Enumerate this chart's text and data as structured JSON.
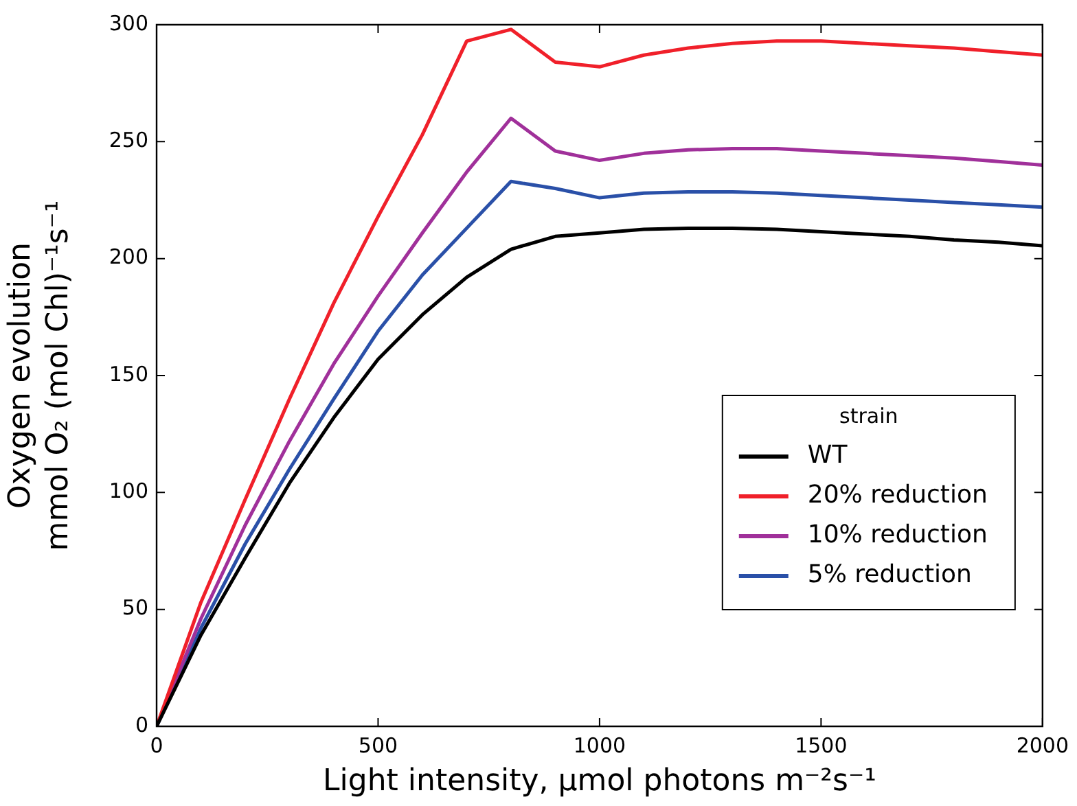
{
  "chart_data": {
    "type": "line",
    "xlabel": "Light intensity, μmol photons m⁻²s⁻¹",
    "ylabel": "Oxygen evolution\nmmol O₂ (mol Chl)⁻¹s⁻¹",
    "legend_title": "strain",
    "legend": "bottom right",
    "grid": false,
    "marker": "none",
    "line_style": "solid",
    "x": [
      0,
      100,
      200,
      300,
      400,
      500,
      600,
      700,
      800,
      900,
      1000,
      1100,
      1200,
      1300,
      1400,
      1500,
      1600,
      1700,
      1800,
      1900,
      2000
    ],
    "xlim": [
      0,
      2000
    ],
    "xticks": [
      0,
      500,
      1000,
      1500,
      2000
    ],
    "ylim": [
      0,
      300
    ],
    "yticks": [
      0,
      50,
      100,
      150,
      200,
      250,
      300
    ],
    "series": [
      {
        "name": "WT",
        "color": "#000000",
        "values": [
          0,
          39,
          72,
          104,
          132,
          157,
          176,
          192,
          204,
          209.5,
          211,
          212.5,
          213,
          213,
          212.5,
          211.5,
          210.5,
          209.5,
          208,
          207,
          205.5
        ]
      },
      {
        "name": "20% reduction",
        "color": "#f0202a",
        "values": [
          0,
          53,
          97,
          140,
          181,
          218,
          253,
          293,
          298,
          284,
          282,
          287,
          290,
          292,
          293,
          293,
          292,
          291,
          290,
          288.5,
          287
        ]
      },
      {
        "name": "10% reduction",
        "color": "#a0309a",
        "values": [
          0,
          46,
          86,
          122,
          155,
          184,
          211,
          237,
          260,
          246,
          242,
          245,
          246.5,
          247,
          247,
          246,
          245,
          244,
          243,
          241.5,
          240
        ]
      },
      {
        "name": "5% reduction",
        "color": "#2a50a8",
        "values": [
          0,
          42,
          78,
          110,
          140,
          169,
          193,
          213,
          233,
          230,
          226,
          228,
          228.5,
          228.5,
          228,
          227,
          226,
          225,
          224,
          223,
          222
        ]
      }
    ]
  }
}
